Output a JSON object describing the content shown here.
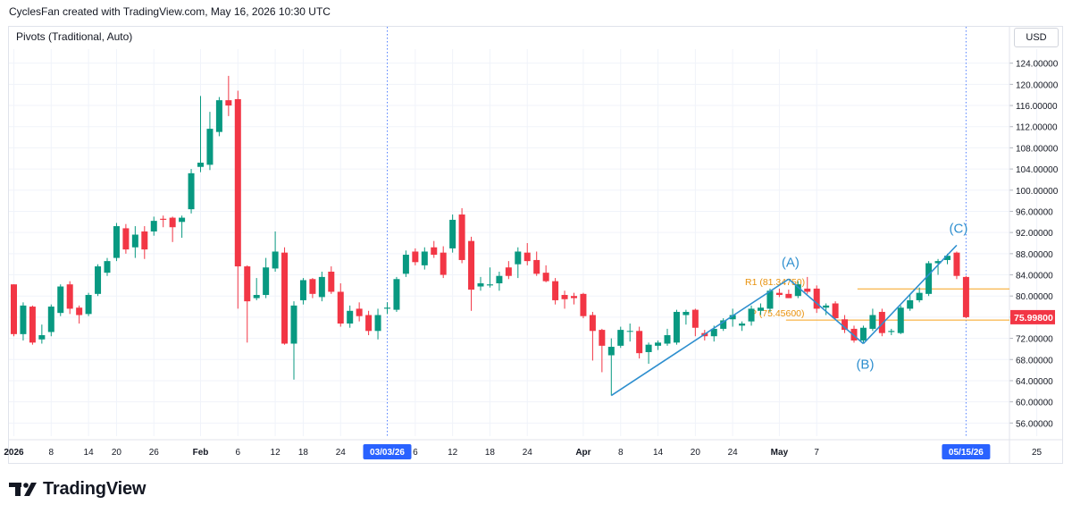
{
  "header": {
    "attribution": "CyclesFan created with TradingView.com, May 16, 2026 10:30 UTC"
  },
  "indicator": {
    "label": "Pivots (Traditional, Auto)"
  },
  "currency_button": {
    "label": "USD"
  },
  "brand": {
    "name": "TradingView"
  },
  "colors": {
    "up": "#089981",
    "down": "#f23645",
    "pattern": "#2e8fcf",
    "pivot": "#f7a21b",
    "pivot_text": "#e8910b",
    "highlight": "#2962ff",
    "grid": "#f0f3fa"
  },
  "chart_data": {
    "type": "candlestick",
    "ylim": [
      52,
      128
    ],
    "y_ticks": [
      "124.00000",
      "120.00000",
      "116.00000",
      "112.00000",
      "108.00000",
      "104.00000",
      "100.00000",
      "96.00000",
      "92.00000",
      "88.00000",
      "84.00000",
      "80.00000",
      "76.00000",
      "72.00000",
      "68.00000",
      "64.00000",
      "60.00000",
      "56.00000"
    ],
    "x_ticks": [
      "2026",
      "8",
      "14",
      "20",
      "26",
      "Feb",
      "6",
      "12",
      "18",
      "24",
      "6",
      "12",
      "18",
      "24",
      "Apr",
      "8",
      "14",
      "20",
      "24",
      "May",
      "7",
      "25"
    ],
    "highlighted_dates": [
      "03/03/26",
      "05/15/26"
    ],
    "last_price_label": "75.99800",
    "candles": [
      {
        "date": "2026-01-02",
        "o": 82.2,
        "h": 82.2,
        "l": 72.4,
        "c": 72.8
      },
      {
        "date": "2026-01-05",
        "o": 72.8,
        "h": 78.8,
        "l": 71.6,
        "c": 78.2
      },
      {
        "date": "2026-01-06",
        "o": 78.0,
        "h": 78.2,
        "l": 70.8,
        "c": 71.2
      },
      {
        "date": "2026-01-07",
        "o": 71.8,
        "h": 74.6,
        "l": 71.0,
        "c": 72.6
      },
      {
        "date": "2026-01-08",
        "o": 73.2,
        "h": 78.4,
        "l": 72.4,
        "c": 78.0
      },
      {
        "date": "2026-01-09",
        "o": 76.8,
        "h": 82.2,
        "l": 76.2,
        "c": 81.8
      },
      {
        "date": "2026-01-12",
        "o": 82.2,
        "h": 82.8,
        "l": 76.6,
        "c": 77.6
      },
      {
        "date": "2026-01-13",
        "o": 77.8,
        "h": 78.2,
        "l": 74.8,
        "c": 76.4
      },
      {
        "date": "2026-01-14",
        "o": 76.6,
        "h": 80.6,
        "l": 76.2,
        "c": 80.2
      },
      {
        "date": "2026-01-15",
        "o": 80.4,
        "h": 86.0,
        "l": 80.0,
        "c": 85.6
      },
      {
        "date": "2026-01-16",
        "o": 84.4,
        "h": 87.2,
        "l": 83.8,
        "c": 86.6
      },
      {
        "date": "2026-01-20",
        "o": 87.2,
        "h": 93.8,
        "l": 86.6,
        "c": 93.2
      },
      {
        "date": "2026-01-21",
        "o": 92.8,
        "h": 93.6,
        "l": 88.0,
        "c": 88.8
      },
      {
        "date": "2026-01-22",
        "o": 89.2,
        "h": 93.2,
        "l": 87.2,
        "c": 91.6
      },
      {
        "date": "2026-01-23",
        "o": 92.2,
        "h": 93.2,
        "l": 87.0,
        "c": 88.8
      },
      {
        "date": "2026-01-26",
        "o": 92.2,
        "h": 95.0,
        "l": 91.4,
        "c": 94.2
      },
      {
        "date": "2026-01-27",
        "o": 94.6,
        "h": 95.2,
        "l": 93.0,
        "c": 94.4
      },
      {
        "date": "2026-01-28",
        "o": 94.8,
        "h": 95.0,
        "l": 90.2,
        "c": 93.0
      },
      {
        "date": "2026-01-29",
        "o": 94.0,
        "h": 95.2,
        "l": 91.0,
        "c": 94.8
      },
      {
        "date": "2026-01-30",
        "o": 96.4,
        "h": 104.0,
        "l": 95.6,
        "c": 103.2
      },
      {
        "date": "2026-02-02",
        "o": 104.4,
        "h": 117.8,
        "l": 103.4,
        "c": 105.2
      },
      {
        "date": "2026-02-03",
        "o": 104.8,
        "h": 114.8,
        "l": 103.8,
        "c": 111.6
      },
      {
        "date": "2026-02-04",
        "o": 111.0,
        "h": 117.6,
        "l": 110.2,
        "c": 117.0
      },
      {
        "date": "2026-02-05",
        "o": 117.0,
        "h": 121.6,
        "l": 114.0,
        "c": 116.0
      },
      {
        "date": "2026-02-06",
        "o": 117.2,
        "h": 118.8,
        "l": 77.6,
        "c": 85.6
      },
      {
        "date": "2026-02-09",
        "o": 85.6,
        "h": 85.8,
        "l": 71.2,
        "c": 79.0
      },
      {
        "date": "2026-02-10",
        "o": 79.6,
        "h": 83.4,
        "l": 79.2,
        "c": 80.2
      },
      {
        "date": "2026-02-11",
        "o": 80.2,
        "h": 87.2,
        "l": 79.6,
        "c": 85.4
      },
      {
        "date": "2026-02-12",
        "o": 85.2,
        "h": 92.2,
        "l": 84.6,
        "c": 88.4
      },
      {
        "date": "2026-02-13",
        "o": 88.2,
        "h": 89.2,
        "l": 70.8,
        "c": 71.0
      },
      {
        "date": "2026-02-17",
        "o": 71.0,
        "h": 79.0,
        "l": 64.2,
        "c": 78.2
      },
      {
        "date": "2026-02-18",
        "o": 79.2,
        "h": 83.4,
        "l": 78.4,
        "c": 83.0
      },
      {
        "date": "2026-02-19",
        "o": 83.2,
        "h": 83.4,
        "l": 79.6,
        "c": 80.4
      },
      {
        "date": "2026-02-20",
        "o": 79.8,
        "h": 84.6,
        "l": 79.0,
        "c": 83.6
      },
      {
        "date": "2026-02-23",
        "o": 84.6,
        "h": 85.6,
        "l": 80.4,
        "c": 80.8
      },
      {
        "date": "2026-02-24",
        "o": 80.8,
        "h": 82.4,
        "l": 74.2,
        "c": 74.8
      },
      {
        "date": "2026-02-25",
        "o": 74.8,
        "h": 78.2,
        "l": 74.0,
        "c": 77.2
      },
      {
        "date": "2026-02-26",
        "o": 77.6,
        "h": 78.8,
        "l": 75.2,
        "c": 76.2
      },
      {
        "date": "2026-02-27",
        "o": 76.4,
        "h": 77.2,
        "l": 72.6,
        "c": 73.4
      },
      {
        "date": "2026-03-02",
        "o": 73.4,
        "h": 77.6,
        "l": 71.8,
        "c": 76.4
      },
      {
        "date": "2026-03-03",
        "o": 77.6,
        "h": 78.8,
        "l": 76.6,
        "c": 77.8
      },
      {
        "date": "2026-03-04",
        "o": 77.4,
        "h": 83.6,
        "l": 77.0,
        "c": 83.2
      },
      {
        "date": "2026-03-05",
        "o": 84.2,
        "h": 88.6,
        "l": 83.6,
        "c": 87.8
      },
      {
        "date": "2026-03-06",
        "o": 88.4,
        "h": 89.0,
        "l": 85.8,
        "c": 86.4
      },
      {
        "date": "2026-03-09",
        "o": 85.8,
        "h": 89.2,
        "l": 85.0,
        "c": 88.4
      },
      {
        "date": "2026-03-10",
        "o": 89.2,
        "h": 90.4,
        "l": 87.2,
        "c": 87.8
      },
      {
        "date": "2026-03-11",
        "o": 88.2,
        "h": 89.4,
        "l": 83.4,
        "c": 84.0
      },
      {
        "date": "2026-03-12",
        "o": 89.0,
        "h": 95.4,
        "l": 88.2,
        "c": 94.4
      },
      {
        "date": "2026-03-13",
        "o": 95.4,
        "h": 96.6,
        "l": 86.2,
        "c": 86.8
      },
      {
        "date": "2026-03-16",
        "o": 90.4,
        "h": 91.2,
        "l": 77.2,
        "c": 81.2
      },
      {
        "date": "2026-03-17",
        "o": 81.8,
        "h": 83.6,
        "l": 81.0,
        "c": 82.4
      },
      {
        "date": "2026-03-18",
        "o": 82.0,
        "h": 85.4,
        "l": 81.6,
        "c": 82.2
      },
      {
        "date": "2026-03-19",
        "o": 82.4,
        "h": 84.6,
        "l": 81.0,
        "c": 83.8
      },
      {
        "date": "2026-03-20",
        "o": 85.4,
        "h": 86.6,
        "l": 83.2,
        "c": 83.8
      },
      {
        "date": "2026-03-23",
        "o": 86.0,
        "h": 89.2,
        "l": 83.4,
        "c": 88.4
      },
      {
        "date": "2026-03-24",
        "o": 88.2,
        "h": 90.0,
        "l": 85.8,
        "c": 86.6
      },
      {
        "date": "2026-03-25",
        "o": 86.8,
        "h": 88.4,
        "l": 83.8,
        "c": 84.2
      },
      {
        "date": "2026-03-26",
        "o": 84.4,
        "h": 85.8,
        "l": 82.6,
        "c": 82.8
      },
      {
        "date": "2026-03-27",
        "o": 82.8,
        "h": 83.4,
        "l": 78.4,
        "c": 79.2
      },
      {
        "date": "2026-03-30",
        "o": 80.2,
        "h": 81.0,
        "l": 77.6,
        "c": 79.4
      },
      {
        "date": "2026-03-31",
        "o": 80.0,
        "h": 80.6,
        "l": 78.4,
        "c": 79.6
      },
      {
        "date": "2026-04-01",
        "o": 80.4,
        "h": 80.6,
        "l": 75.8,
        "c": 76.2
      },
      {
        "date": "2026-04-02",
        "o": 76.4,
        "h": 77.0,
        "l": 67.8,
        "c": 73.4
      },
      {
        "date": "2026-04-06",
        "o": 73.6,
        "h": 73.8,
        "l": 65.6,
        "c": 70.6
      },
      {
        "date": "2026-04-07",
        "o": 68.8,
        "h": 72.0,
        "l": 61.2,
        "c": 70.4
      },
      {
        "date": "2026-04-08",
        "o": 70.6,
        "h": 74.2,
        "l": 70.2,
        "c": 73.6
      },
      {
        "date": "2026-04-09",
        "o": 73.4,
        "h": 74.8,
        "l": 71.4,
        "c": 73.4
      },
      {
        "date": "2026-04-10",
        "o": 73.4,
        "h": 74.2,
        "l": 68.2,
        "c": 69.2
      },
      {
        "date": "2026-04-13",
        "o": 69.4,
        "h": 71.2,
        "l": 67.2,
        "c": 70.8
      },
      {
        "date": "2026-04-14",
        "o": 70.6,
        "h": 71.6,
        "l": 69.8,
        "c": 71.2
      },
      {
        "date": "2026-04-15",
        "o": 71.0,
        "h": 73.8,
        "l": 70.6,
        "c": 72.6
      },
      {
        "date": "2026-04-16",
        "o": 71.2,
        "h": 77.4,
        "l": 70.8,
        "c": 77.0
      },
      {
        "date": "2026-04-17",
        "o": 76.4,
        "h": 77.4,
        "l": 74.6,
        "c": 77.0
      },
      {
        "date": "2026-04-20",
        "o": 77.4,
        "h": 77.6,
        "l": 72.4,
        "c": 74.0
      },
      {
        "date": "2026-04-21",
        "o": 73.0,
        "h": 73.6,
        "l": 71.6,
        "c": 72.4
      },
      {
        "date": "2026-04-22",
        "o": 72.4,
        "h": 74.4,
        "l": 71.4,
        "c": 73.8
      },
      {
        "date": "2026-04-23",
        "o": 73.8,
        "h": 75.8,
        "l": 73.4,
        "c": 75.4
      },
      {
        "date": "2026-04-24",
        "o": 75.6,
        "h": 77.6,
        "l": 74.2,
        "c": 76.4
      },
      {
        "date": "2026-04-27",
        "o": 74.4,
        "h": 75.2,
        "l": 73.4,
        "c": 74.8
      },
      {
        "date": "2026-04-28",
        "o": 75.2,
        "h": 78.2,
        "l": 74.4,
        "c": 77.6
      },
      {
        "date": "2026-04-29",
        "o": 77.2,
        "h": 78.6,
        "l": 76.4,
        "c": 77.8
      },
      {
        "date": "2026-04-30",
        "o": 77.6,
        "h": 81.4,
        "l": 77.0,
        "c": 81.0
      },
      {
        "date": "2026-05-01",
        "o": 80.6,
        "h": 81.4,
        "l": 79.8,
        "c": 80.2
      },
      {
        "date": "2026-05-04",
        "o": 80.4,
        "h": 81.2,
        "l": 79.6,
        "c": 79.6
      },
      {
        "date": "2026-05-05",
        "o": 80.0,
        "h": 82.8,
        "l": 79.6,
        "c": 82.2
      },
      {
        "date": "2026-05-06",
        "o": 81.4,
        "h": 83.6,
        "l": 80.4,
        "c": 80.8
      },
      {
        "date": "2026-05-07",
        "o": 81.4,
        "h": 82.0,
        "l": 76.8,
        "c": 77.6
      },
      {
        "date": "2026-05-08",
        "o": 77.8,
        "h": 78.6,
        "l": 76.4,
        "c": 78.2
      },
      {
        "date": "2026-05-11",
        "o": 78.6,
        "h": 79.0,
        "l": 75.6,
        "c": 75.8
      },
      {
        "date": "2026-05-12",
        "o": 75.6,
        "h": 76.4,
        "l": 73.0,
        "c": 73.6
      },
      {
        "date": "2026-05-13",
        "o": 73.8,
        "h": 74.4,
        "l": 71.2,
        "c": 71.6
      },
      {
        "date": "2026-05-14",
        "o": 71.6,
        "h": 74.4,
        "l": 71.2,
        "c": 74.0
      },
      {
        "date": "2026-05-15",
        "o": 73.8,
        "h": 77.6,
        "l": 73.4,
        "c": 76.4
      },
      {
        "date": "2026-05-18",
        "o": 77.0,
        "h": 77.6,
        "l": 72.4,
        "c": 73.0
      },
      {
        "date": "2026-05-19",
        "o": 73.2,
        "h": 73.8,
        "l": 72.6,
        "c": 73.4
      },
      {
        "date": "2026-05-20",
        "o": 73.0,
        "h": 78.2,
        "l": 72.8,
        "c": 77.8
      },
      {
        "date": "2026-05-21",
        "o": 77.6,
        "h": 80.4,
        "l": 77.2,
        "c": 79.2
      },
      {
        "date": "2026-05-22",
        "o": 79.2,
        "h": 81.6,
        "l": 78.8,
        "c": 80.6
      },
      {
        "date": "2026-05-25",
        "o": 80.4,
        "h": 86.6,
        "l": 80.0,
        "c": 86.2
      },
      {
        "date": "2026-05-26",
        "o": 86.2,
        "h": 87.0,
        "l": 84.0,
        "c": 86.6
      },
      {
        "date": "2026-05-27",
        "o": 86.8,
        "h": 88.0,
        "l": 86.0,
        "c": 87.6
      },
      {
        "date": "2026-05-28",
        "o": 88.2,
        "h": 88.4,
        "l": 83.2,
        "c": 83.8
      },
      {
        "date": "2026-05-29",
        "o": 83.6,
        "h": 83.8,
        "l": 75.8,
        "c": 75.998
      }
    ],
    "pattern_points": [
      {
        "date": "2026-04-07",
        "value": 61.2
      },
      {
        "date": "2026-05-04",
        "value": 83.2
      },
      {
        "date": "2026-05-14",
        "value": 71.0
      },
      {
        "date": "2026-05-28",
        "value": 89.6
      }
    ],
    "wave_labels": [
      "(A)",
      "(B)",
      "(C)"
    ],
    "pivots": [
      {
        "label": "R1 (81.34750)",
        "value": 81.3475
      },
      {
        "label": "P (75.45600)",
        "value": 75.456
      }
    ]
  }
}
